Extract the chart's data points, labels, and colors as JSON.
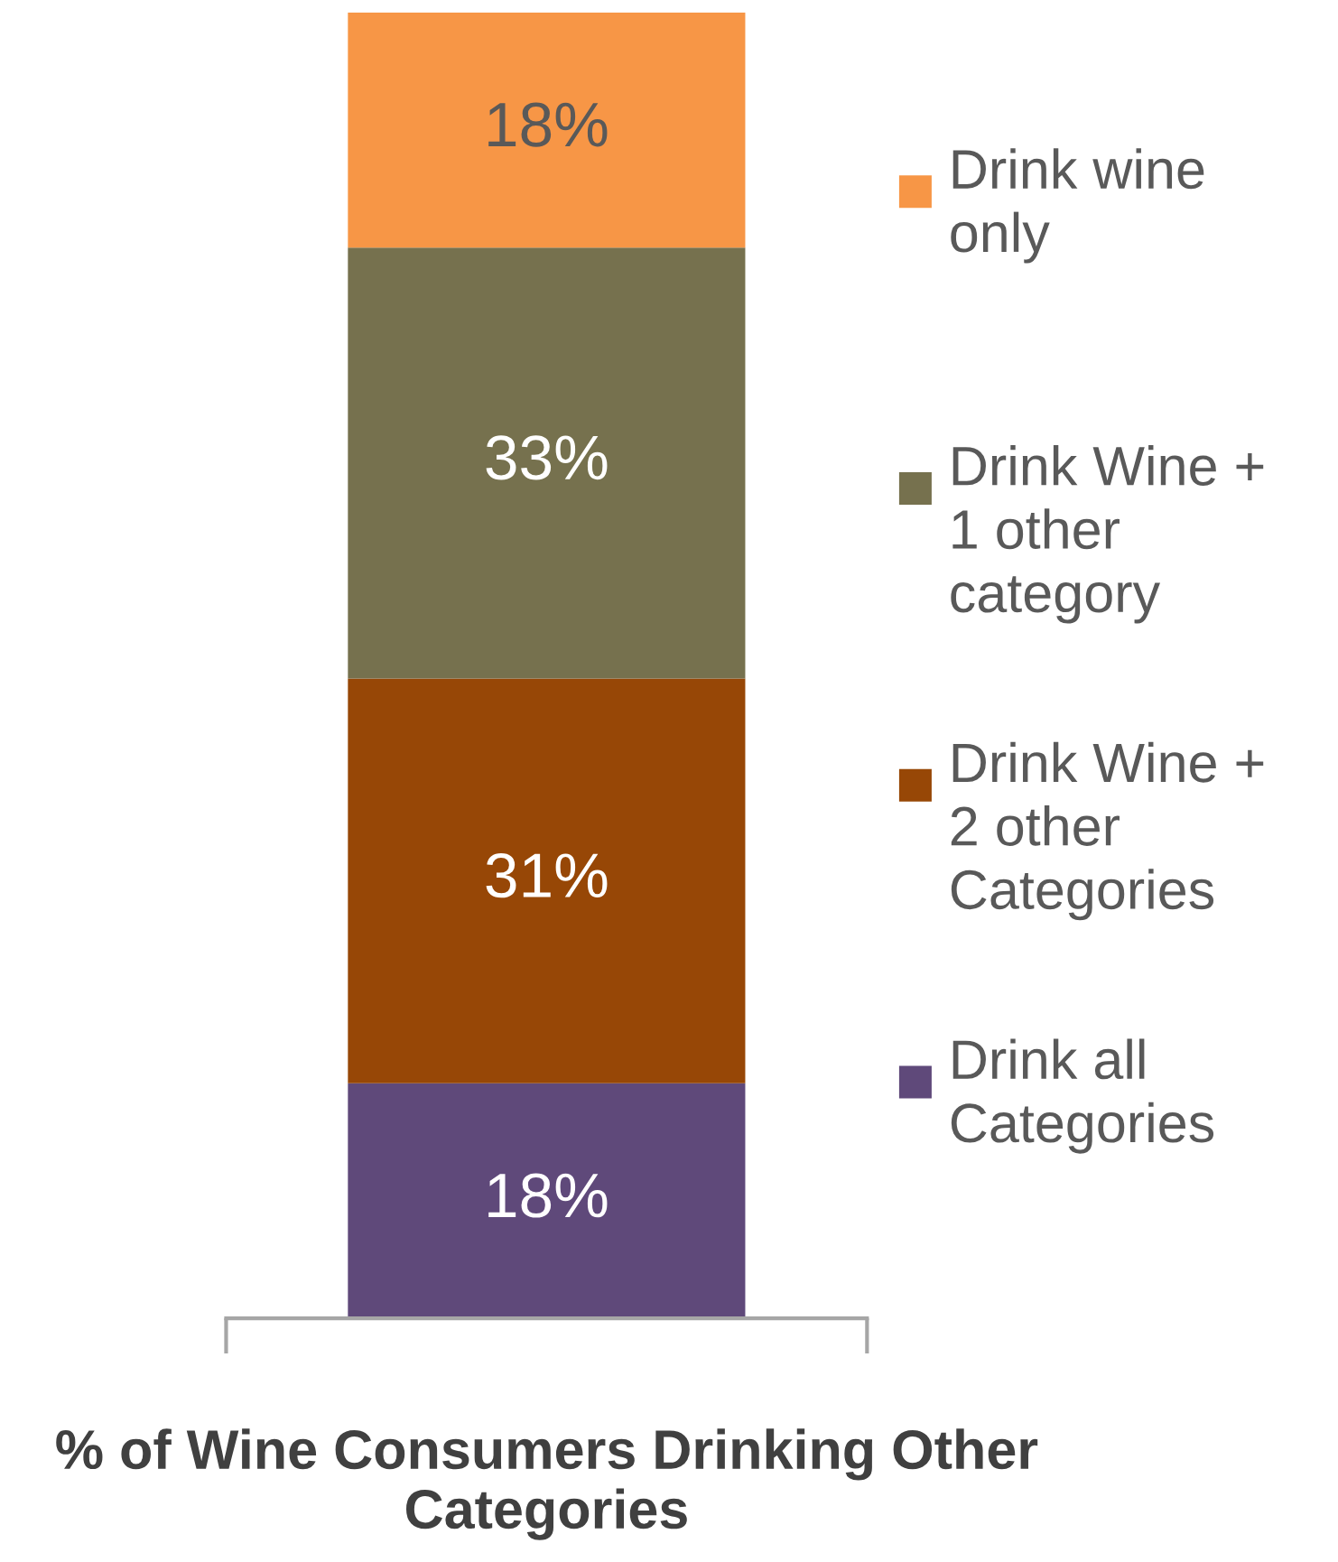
{
  "chart_data": {
    "type": "bar",
    "stacked": true,
    "categories": [
      null
    ],
    "xlabel": "% of Wine Consumers Drinking Other Categories",
    "ylim": [
      0,
      100
    ],
    "tick_labels": false,
    "legend": "right",
    "grid": false,
    "series": [
      {
        "name": "Drink all Categories",
        "color": "#5f497a",
        "values": [
          18
        ],
        "value_labels": [
          "18%"
        ]
      },
      {
        "name": "Drink Wine + 2 other Categories",
        "color": "#974706",
        "values": [
          31
        ],
        "value_labels": [
          "31%"
        ]
      },
      {
        "name": "Drink Wine + 1 other category",
        "color": "#76714e",
        "values": [
          33
        ],
        "value_labels": [
          "33%"
        ]
      },
      {
        "name": "Drink wine only",
        "color": "#f79646",
        "values": [
          18
        ],
        "value_labels": [
          "18%"
        ]
      }
    ]
  }
}
